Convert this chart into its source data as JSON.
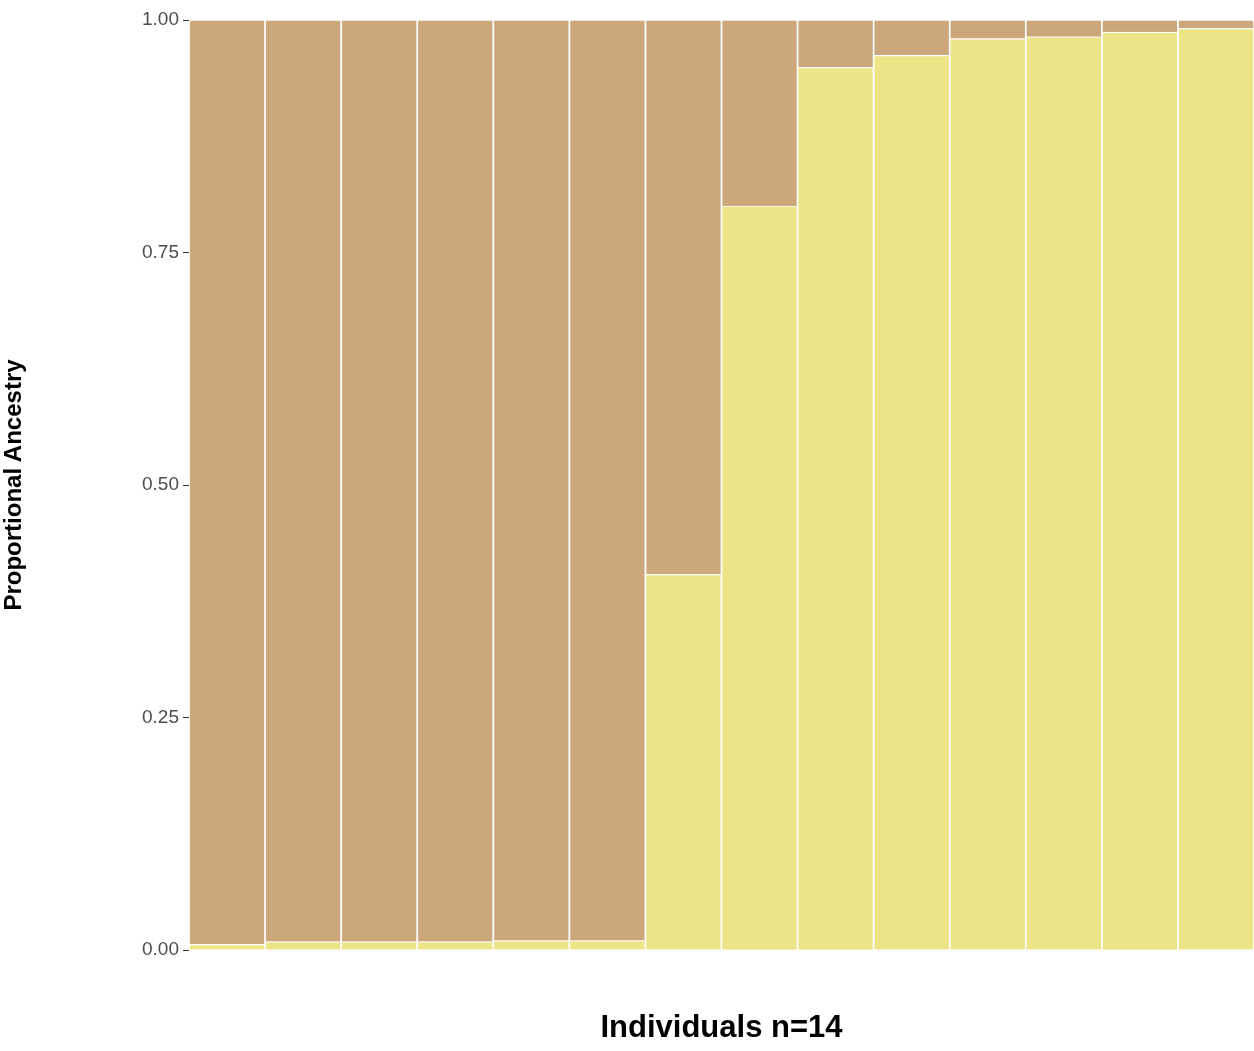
{
  "chart_data": {
    "type": "bar",
    "stacked": true,
    "xlabel": "Individuals n=14",
    "ylabel": "Proportional Ancestry",
    "categories": [
      null,
      null,
      null,
      null,
      null,
      null,
      null,
      null,
      null,
      null,
      null,
      null,
      null,
      null
    ],
    "series": [
      {
        "color": "#ece486",
        "values": [
          0.006,
          0.009,
          0.009,
          0.009,
          0.01,
          0.01,
          0.404,
          0.8,
          0.949,
          0.962,
          0.98,
          0.982,
          0.987,
          0.991
        ]
      },
      {
        "color": "#cca77b",
        "values": [
          0.994,
          0.991,
          0.991,
          0.991,
          0.99,
          0.99,
          0.596,
          0.2,
          0.051,
          0.038,
          0.02,
          0.018,
          0.013,
          0.009
        ]
      }
    ],
    "ylim": [
      0,
      1
    ],
    "yticks": [
      {
        "value": 0,
        "label": "0.00"
      },
      {
        "value": 0.25,
        "label": "0.25"
      },
      {
        "value": 0.5,
        "label": "0.50"
      },
      {
        "value": 0.75,
        "label": "0.75"
      },
      {
        "value": 1,
        "label": "1.00"
      }
    ],
    "grid": false,
    "legend": false,
    "tick_labels": "y"
  }
}
